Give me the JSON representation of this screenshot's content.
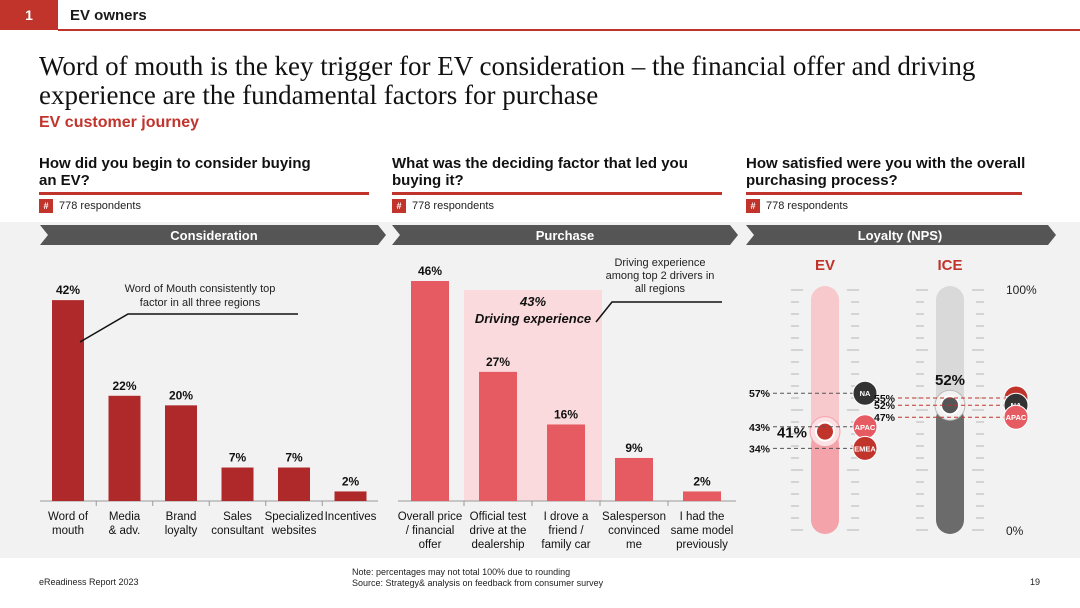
{
  "header": {
    "slide_number": "1",
    "section_title": "EV owners"
  },
  "headline": "Word of mouth is the key trigger for EV consideration – the financial offer and driving experience are the fundamental factors for purchase",
  "subtitle": "EV customer journey",
  "columns": [
    {
      "question": "How did you begin to consider buying an EV?",
      "hash": "#",
      "respondents": "778 respondents",
      "stage": "Consideration"
    },
    {
      "question": "What was the deciding factor that led you buying it?",
      "hash": "#",
      "respondents": "778 respondents",
      "stage": "Purchase"
    },
    {
      "question": "How satisfied were you with the overall purchasing process?",
      "hash": "#",
      "respondents": "778 respondents",
      "stage": "Loyalty (NPS)"
    }
  ],
  "colors": {
    "accent": "#c0342c",
    "consider_bar": "#b0292a",
    "purchase_bar": "#e65a62",
    "highlight": "#fadadd",
    "ev_gauge": "#f4a3aa",
    "ice_gauge": "#6b6b6b"
  },
  "chart_data": [
    {
      "type": "bar",
      "title": "Consideration",
      "categories": [
        "Word of\nmouth",
        "Media\n& adv.",
        "Brand\nloyalty",
        "Sales\nconsultant",
        "Specialized\nwebsites",
        "Incentives"
      ],
      "values": [
        42,
        22,
        20,
        7,
        7,
        2
      ],
      "value_labels": [
        "42%",
        "22%",
        "20%",
        "7%",
        "7%",
        "2%"
      ],
      "annotation": "Word of Mouth consistently top\nfactor in all three regions",
      "ylim": [
        0,
        46
      ]
    },
    {
      "type": "bar",
      "title": "Purchase",
      "categories": [
        "Overall price\n/ financial\noffer",
        "Official test\ndrive at the\ndealership",
        "I drove a\nfriend /\nfamily car",
        "Salesperson\nconvinced\nme",
        "I had the\nsame model\npreviously"
      ],
      "values": [
        46,
        27,
        16,
        9,
        2
      ],
      "value_labels": [
        "46%",
        "27%",
        "16%",
        "9%",
        "2%"
      ],
      "highlight_label": "43%",
      "highlight_sublabel": "Driving experience",
      "annotation": "Driving experience\namong top 2 drivers in\nall regions",
      "ylim": [
        0,
        46
      ]
    },
    {
      "type": "gauge",
      "title": "Loyalty (NPS)",
      "axis_max_label": "100%",
      "axis_min_label": "0%",
      "series": [
        {
          "name": "EV",
          "overall": 41,
          "overall_label": "41%",
          "regions": [
            {
              "name": "NA",
              "value": 57,
              "label": "57%"
            },
            {
              "name": "APAC",
              "value": 43,
              "label": "43%"
            },
            {
              "name": "EMEA",
              "value": 34,
              "label": "34%"
            }
          ]
        },
        {
          "name": "ICE",
          "overall": 52,
          "overall_label": "52%",
          "regions": [
            {
              "name": "EMEA",
              "value": 55,
              "label": "55%"
            },
            {
              "name": "NA",
              "value": 52,
              "label": "52%"
            },
            {
              "name": "APAC",
              "value": 47,
              "label": "47%"
            }
          ]
        }
      ]
    }
  ],
  "footer": {
    "report": "eReadiness Report 2023",
    "note": "Note: percentages may not total 100% due to rounding",
    "source": "Source: Strategy& analysis on feedback from consumer survey",
    "page": "19"
  }
}
